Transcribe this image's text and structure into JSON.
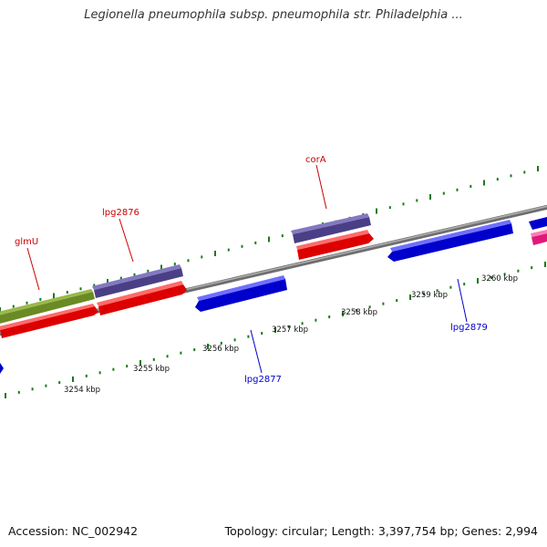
{
  "title": "Legionella pneumophila subsp. pneumophila str. Philadelphia ...",
  "footer": {
    "accession": "Accession: NC_002942",
    "summary": "Topology: circular; Length: 3,397,754 bp; Genes: 2,994"
  },
  "kbp_labels": [
    "3254 kbp",
    "3255 kbp",
    "3256 kbp",
    "3257 kbp",
    "3258 kbp",
    "3259 kbp",
    "3260 kbp"
  ],
  "gene_labels": {
    "glmU": "glmU",
    "lpg2876": "lpg2876",
    "corA": "corA",
    "lpg2877": "lpg2877",
    "lpg2879": "lpg2879"
  },
  "colors": {
    "forward_label": "#cc0000",
    "reverse_label": "#0000cc",
    "tick": "#1a7a1a",
    "backbone": "#808080"
  }
}
